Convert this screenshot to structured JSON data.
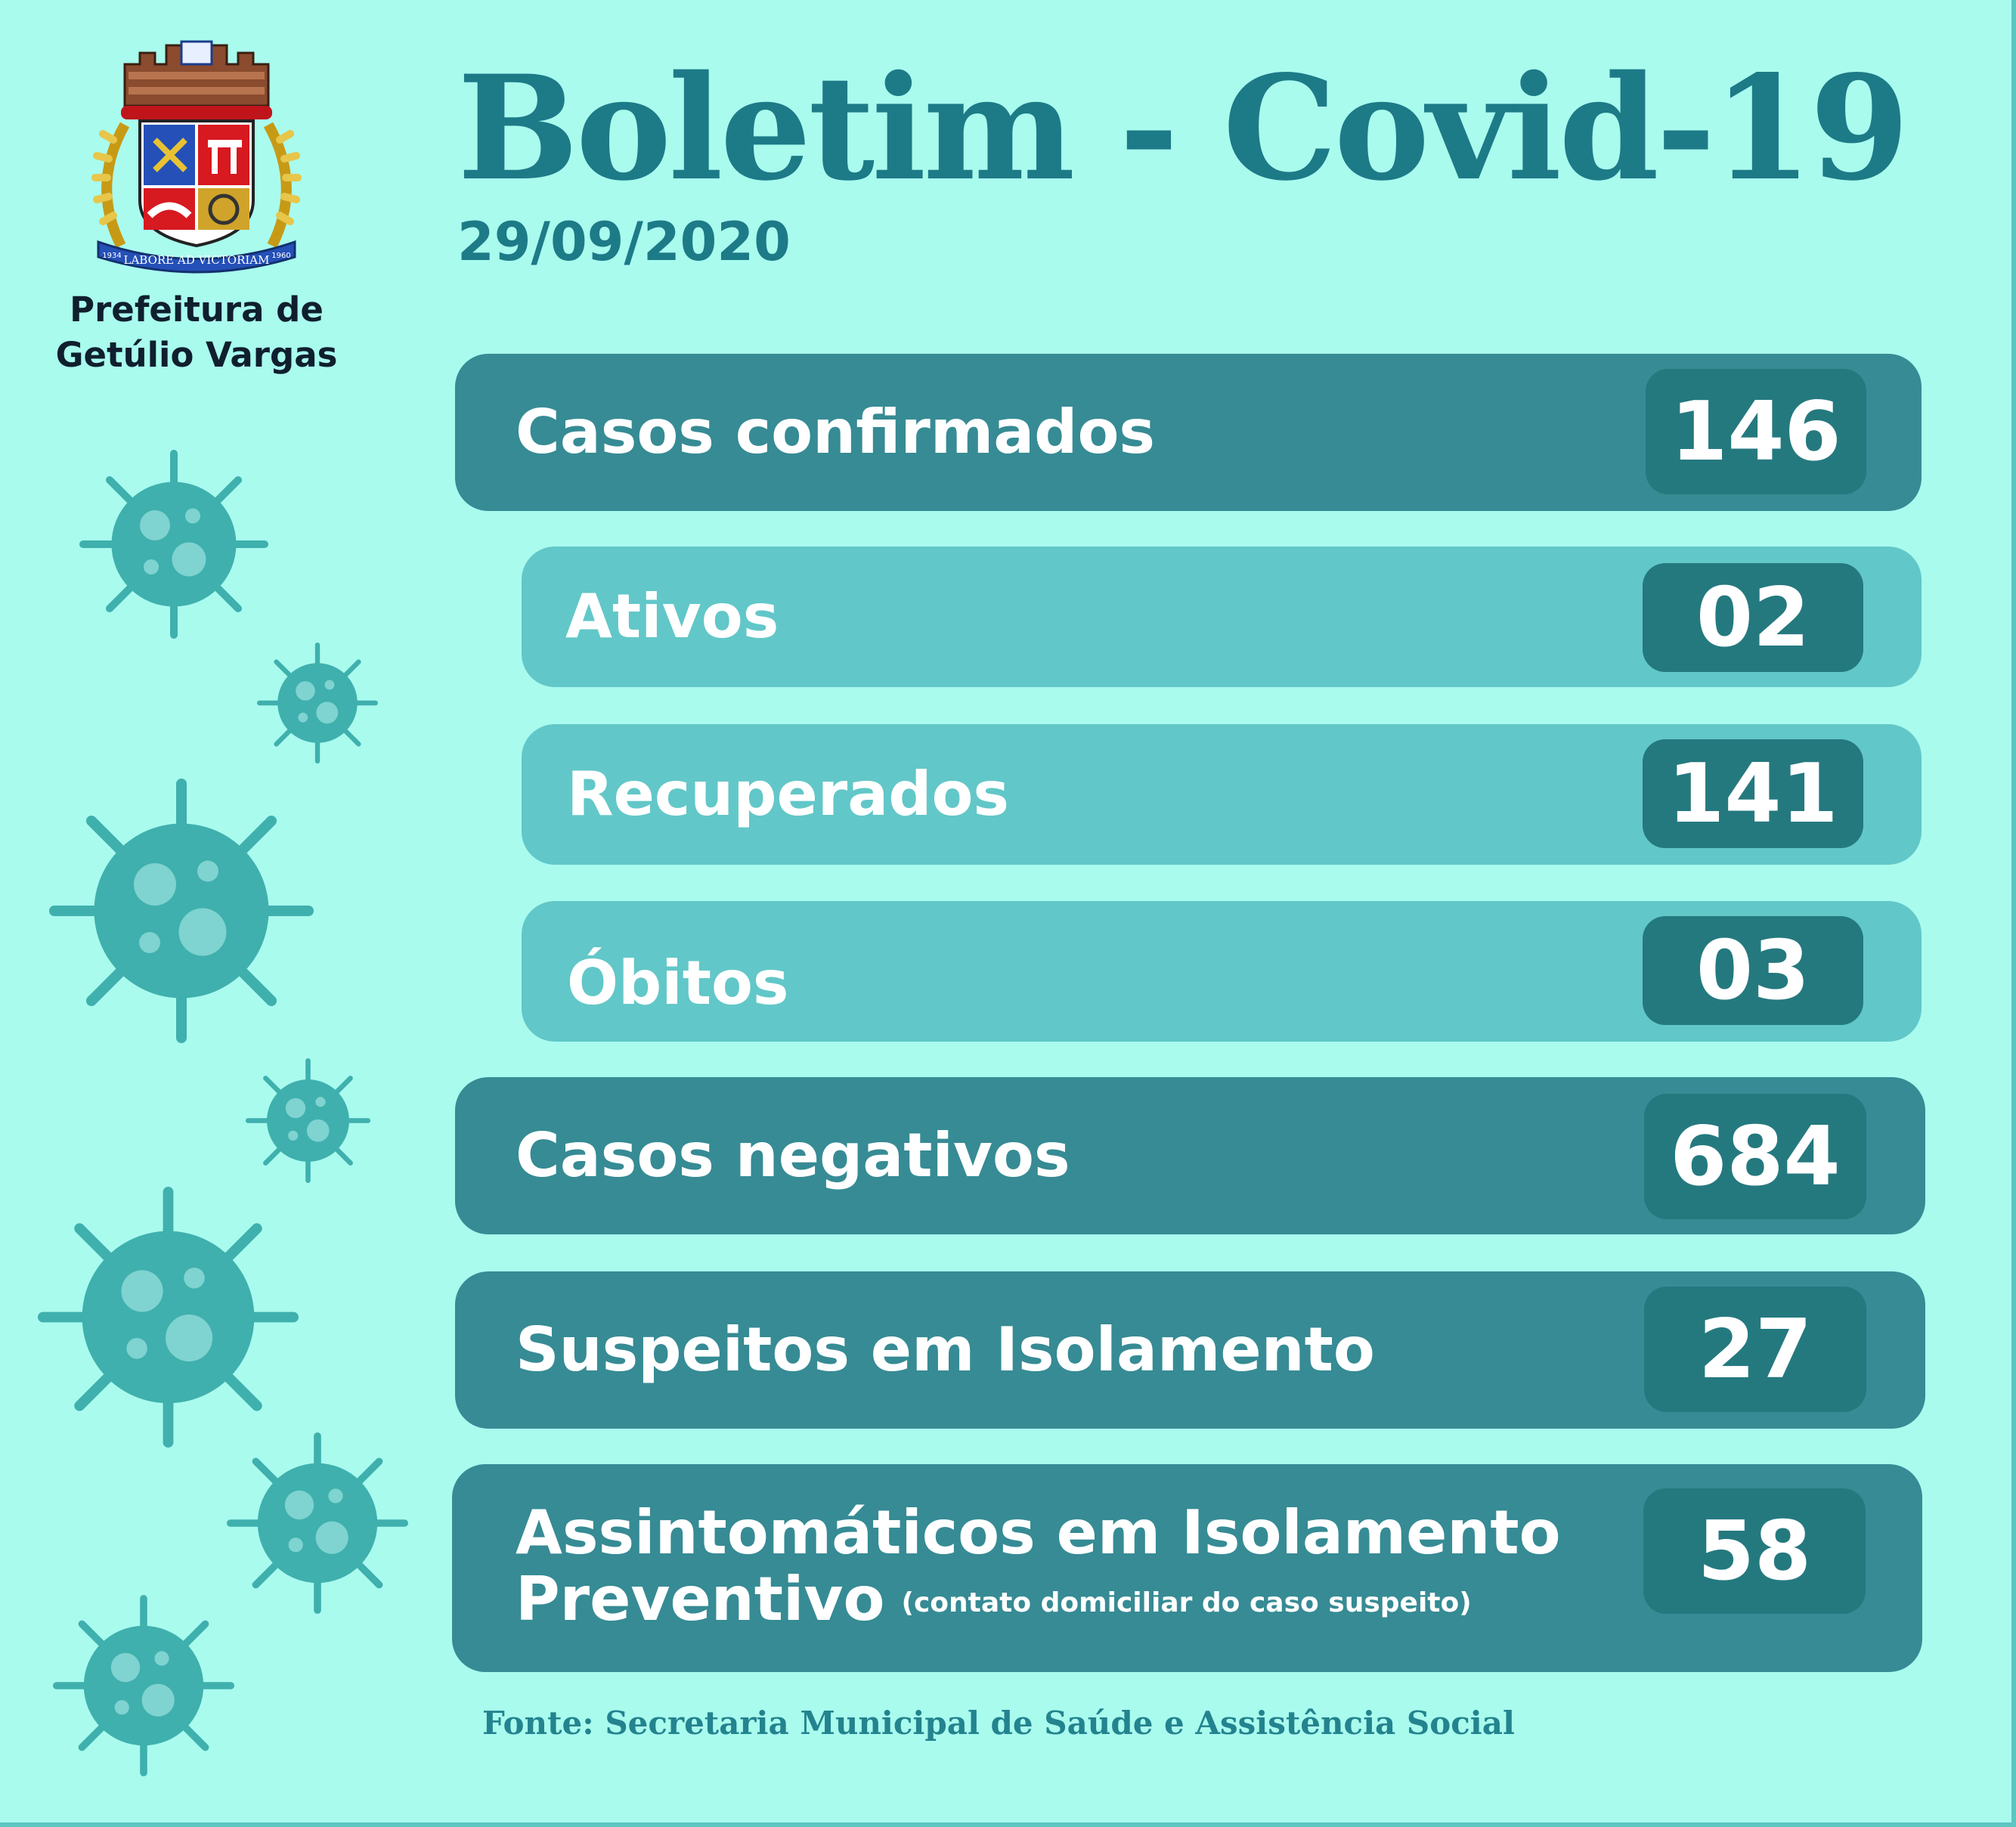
{
  "brand": {
    "line1": "Prefeitura de",
    "line2": "Getúlio Vargas",
    "motto": "LABORE AD VICTORIAM",
    "year_left": "1934",
    "year_right": "1960"
  },
  "title": "Boletim - Covid-19",
  "date": "29/09/2020",
  "stats": {
    "confirmados": {
      "label": "Casos confirmados",
      "value": "146"
    },
    "ativos": {
      "label": "Ativos",
      "value": "02"
    },
    "recuperados": {
      "label": "Recuperados",
      "value": "141"
    },
    "obitos": {
      "label": "Óbitos",
      "value": "03"
    },
    "negativos": {
      "label": "Casos negativos",
      "value": "684"
    },
    "suspeitos": {
      "label": "Suspeitos em Isolamento",
      "value": "27"
    },
    "assintomaticos": {
      "label_line1": "Assintomáticos em Isolamento",
      "label_line2": "Preventivo",
      "note": "(contato domiciliar do caso suspeito)",
      "value": "58"
    }
  },
  "source": "Fonte: Secretaria Municipal de Saúde e Assistência Social",
  "colors": {
    "background": "#a9fbee",
    "title": "#1d7a87",
    "bar_dark": "#368b94",
    "bar_light": "#62c7c8",
    "value_box": "#24797f",
    "virus": "#3fb0ad"
  }
}
